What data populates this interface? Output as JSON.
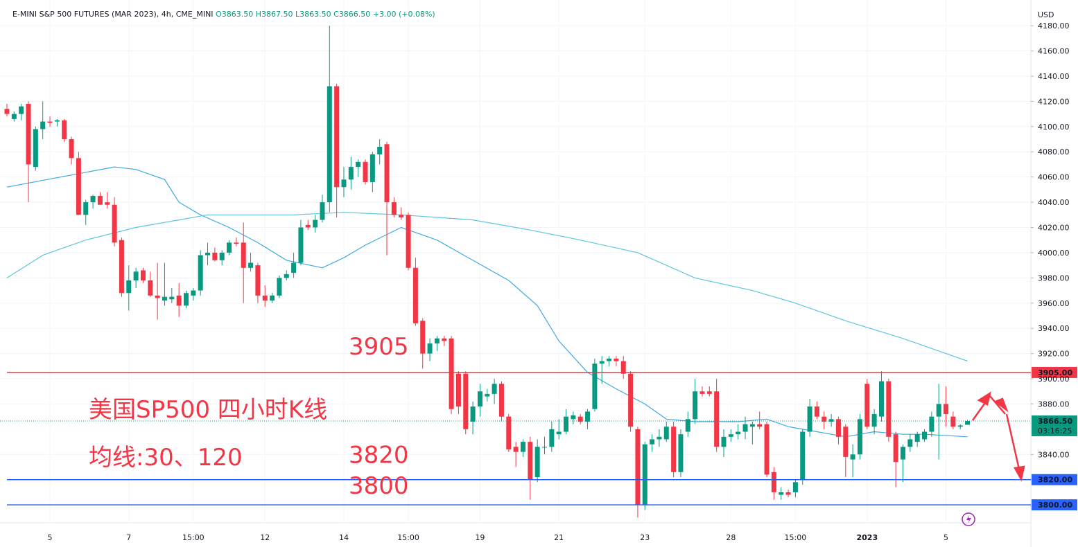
{
  "header": {
    "symbol": "E-MINI S&P 500 FUTURES (MAR 2023), 4h, CME_MINI",
    "open": "O3863.50",
    "high": "H3867.50",
    "low": "L3863.50",
    "close": "C3866.50",
    "change": "+3.00 (+0.08%)",
    "currency": "USD"
  },
  "chart_data": {
    "type": "candlestick",
    "annotations": {
      "title": "美国SP500 四小时K线",
      "subtitle": "均线:30、120"
    },
    "up_color": "#089981",
    "down_color": "#f23645",
    "grid": true,
    "ylim": [
      3788,
      4196
    ],
    "yticks": [
      {
        "value": 3840,
        "label": "3840.00"
      },
      {
        "value": 3880,
        "label": "3880.00"
      },
      {
        "value": 3900,
        "label": "3900.00"
      },
      {
        "value": 3920,
        "label": "3920.00"
      },
      {
        "value": 3940,
        "label": "3940.00"
      },
      {
        "value": 3960,
        "label": "3960.00"
      },
      {
        "value": 3980,
        "label": "3980.00"
      },
      {
        "value": 4000,
        "label": "4000.00"
      },
      {
        "value": 4020,
        "label": "4020.00"
      },
      {
        "value": 4040,
        "label": "4040.00"
      },
      {
        "value": 4060,
        "label": "4060.00"
      },
      {
        "value": 4080,
        "label": "4080.00"
      },
      {
        "value": 4100,
        "label": "4100.00"
      },
      {
        "value": 4120,
        "label": "4120.00"
      },
      {
        "value": 4140,
        "label": "4140.00"
      },
      {
        "value": 4160,
        "label": "4160.00"
      },
      {
        "value": 4180,
        "label": "4180.00"
      }
    ],
    "categories": [
      null,
      null,
      null,
      null,
      null,
      null,
      "5",
      null,
      null,
      null,
      null,
      null,
      null,
      null,
      null,
      null,
      null,
      "7",
      null,
      null,
      null,
      null,
      null,
      null,
      null,
      null,
      "15:00",
      null,
      null,
      null,
      null,
      null,
      null,
      null,
      null,
      null,
      "12",
      null,
      null,
      null,
      null,
      null,
      null,
      null,
      null,
      null,
      null,
      "14",
      null,
      null,
      null,
      null,
      null,
      null,
      null,
      null,
      "15:00",
      null,
      null,
      null,
      null,
      null,
      null,
      null,
      null,
      null,
      "19",
      null,
      null,
      null,
      null,
      null,
      null,
      null,
      null,
      null,
      null,
      "21",
      null,
      null,
      null,
      null,
      null,
      null,
      null,
      null,
      null,
      null,
      null,
      "23",
      null,
      null,
      null,
      null,
      null,
      null,
      null,
      null,
      null,
      null,
      null,
      "28",
      null,
      null,
      null,
      null,
      null,
      null,
      null,
      null,
      "15:00",
      null,
      null,
      null,
      null,
      null,
      null,
      null,
      null,
      null,
      "2023",
      null,
      null,
      null,
      null,
      null,
      null,
      null,
      null,
      null,
      null,
      "5",
      null,
      null,
      null
    ],
    "open": [
      4114,
      4106,
      4110,
      4118,
      4068,
      4098,
      4104,
      4104,
      4105,
      4090,
      4075,
      4030,
      4040,
      4045,
      4040,
      4038,
      4010,
      3968,
      3978,
      3986,
      3978,
      3966,
      3962,
      3963,
      3966,
      3958,
      3966,
      3970,
      3998,
      4000,
      3994,
      4000,
      4008,
      4008,
      3988,
      3990,
      3966,
      3962,
      3966,
      3980,
      3984,
      3992,
      4022,
      4020,
      4026,
      4040,
      4132,
      4052,
      4058,
      4068,
      4072,
      4056,
      4078,
      4086,
      4040,
      4030,
      4030,
      3988,
      3946,
      3920,
      3928,
      3932,
      3932,
      3904,
      3904,
      3866,
      3878,
      3886,
      3888,
      3896,
      3870,
      3846,
      3842,
      3850,
      3822,
      3846,
      3846,
      3856,
      3858,
      3868,
      3870,
      3866,
      3876,
      3912,
      3914,
      3916,
      3914,
      3904,
      3860,
      3800,
      3848,
      3852,
      3852,
      3862,
      3826,
      3858,
      3868,
      3890,
      3890,
      3890,
      3846,
      3854,
      3856,
      3858,
      3862,
      3864,
      3864,
      3826,
      3808,
      3810,
      3810,
      3820,
      3858,
      3878,
      3870,
      3866,
      3868,
      3862,
      3836,
      3840,
      3896,
      3862,
      3870,
      3898,
      3856,
      3836,
      3846,
      3850,
      3852,
      3858,
      3870,
      3880,
      3870,
      3862,
      3863.5
    ],
    "high": [
      4118,
      4112,
      4118,
      4120,
      4100,
      4120,
      4108,
      4106,
      4106,
      4092,
      4080,
      4042,
      4046,
      4048,
      4048,
      4044,
      4012,
      3990,
      3988,
      3988,
      3985,
      3992,
      3992,
      3972,
      3976,
      3970,
      3972,
      4002,
      4008,
      4004,
      4002,
      4010,
      4012,
      4024,
      4000,
      3992,
      3974,
      3968,
      3982,
      3986,
      4000,
      4026,
      4026,
      4030,
      4046,
      4180,
      4134,
      4068,
      4076,
      4074,
      4074,
      4080,
      4090,
      4088,
      4044,
      4036,
      4032,
      3996,
      3948,
      3932,
      3934,
      3934,
      3934,
      3906,
      3906,
      3882,
      3896,
      3892,
      3900,
      3898,
      3872,
      3850,
      3852,
      3854,
      3852,
      3854,
      3866,
      3868,
      3876,
      3874,
      3872,
      3876,
      3916,
      3918,
      3918,
      3918,
      3918,
      3906,
      3862,
      3850,
      3856,
      3860,
      3866,
      3866,
      3860,
      3874,
      3900,
      3894,
      3894,
      3900,
      3860,
      3860,
      3864,
      3870,
      3866,
      3874,
      3866,
      3830,
      3814,
      3812,
      3820,
      3860,
      3884,
      3882,
      3874,
      3872,
      3870,
      3864,
      3848,
      3872,
      3900,
      3876,
      3906,
      3900,
      3858,
      3848,
      3856,
      3858,
      3860,
      3874,
      3896,
      3894,
      3874,
      3864,
      3867.5
    ],
    "low": [
      4108,
      4104,
      4105,
      4040,
      4065,
      4090,
      4100,
      4100,
      4088,
      4070,
      4030,
      4022,
      4035,
      4038,
      4035,
      4005,
      3965,
      3954,
      3972,
      3976,
      3965,
      3947,
      3958,
      3960,
      3949,
      3956,
      3962,
      3966,
      3990,
      3993,
      3990,
      3998,
      4005,
      3960,
      3985,
      3960,
      3957,
      3960,
      3964,
      3978,
      3980,
      3990,
      4018,
      4016,
      4024,
      4032,
      4028,
      4044,
      4050,
      4060,
      4054,
      4048,
      4070,
      3998,
      4028,
      4026,
      3986,
      3942,
      3908,
      3914,
      3922,
      3926,
      3872,
      3872,
      3856,
      3856,
      3870,
      3882,
      3880,
      3866,
      3842,
      3830,
      3838,
      3804,
      3818,
      3840,
      3842,
      3852,
      3856,
      3864,
      3864,
      3860,
      3874,
      3896,
      3910,
      3910,
      3900,
      3858,
      3790,
      3796,
      3842,
      3846,
      3850,
      3822,
      3822,
      3854,
      3864,
      3886,
      3886,
      3842,
      3838,
      3850,
      3852,
      3852,
      3848,
      3860,
      3822,
      3804,
      3804,
      3806,
      3806,
      3816,
      3854,
      3868,
      3860,
      3862,
      3848,
      3822,
      3822,
      3836,
      3860,
      3856,
      3866,
      3850,
      3814,
      3818,
      3842,
      3846,
      3850,
      3854,
      3836,
      3862,
      3860,
      3860,
      3863.5
    ],
    "close": [
      4110,
      4110,
      4116,
      4070,
      4098,
      4104,
      4103,
      4105,
      4090,
      4075,
      4030,
      4040,
      4045,
      4038,
      4038,
      4008,
      3968,
      3978,
      3985,
      3978,
      3966,
      3964,
      3965,
      3965,
      3958,
      3968,
      3970,
      3998,
      4000,
      3994,
      4000,
      4008,
      4007,
      3988,
      3992,
      3966,
      3962,
      3966,
      3980,
      3983,
      3992,
      4020,
      4020,
      4026,
      4040,
      4132,
      4052,
      4058,
      4068,
      4072,
      4056,
      4078,
      4084,
      4040,
      4030,
      4028,
      3988,
      3944,
      3920,
      3928,
      3932,
      3930,
      3876,
      3878,
      3860,
      3878,
      3890,
      3888,
      3896,
      3870,
      3844,
      3842,
      3850,
      3820,
      3846,
      3846,
      3860,
      3858,
      3870,
      3871,
      3866,
      3874,
      3912,
      3914,
      3916,
      3914,
      3904,
      3862,
      3800,
      3848,
      3852,
      3854,
      3862,
      3826,
      3856,
      3868,
      3890,
      3888,
      3888,
      3846,
      3854,
      3856,
      3858,
      3864,
      3864,
      3862,
      3824,
      3810,
      3810,
      3808,
      3818,
      3858,
      3878,
      3870,
      3866,
      3868,
      3854,
      3838,
      3840,
      3868,
      3862,
      3872,
      3898,
      3854,
      3834,
      3846,
      3852,
      3856,
      3858,
      3870,
      3880,
      3872,
      3862,
      3863,
      3866.5
    ],
    "series": [
      {
        "color": "#3fa9e0",
        "x": [
          0,
          15,
          18,
          22,
          24,
          27,
          31,
          35,
          39,
          44,
          47,
          50,
          55,
          60,
          65,
          70,
          74,
          77,
          81,
          85,
          89,
          92,
          96,
          102,
          106,
          109,
          113,
          117,
          121,
          125,
          128,
          134
        ],
        "values": [
          4052,
          4068,
          4066,
          4058,
          4040,
          4030,
          4020,
          4008,
          3994,
          3988,
          3996,
          4006,
          4020,
          4010,
          3994,
          3978,
          3958,
          3930,
          3905,
          3892,
          3880,
          3868,
          3866,
          3866,
          3868,
          3862,
          3858,
          3854,
          3858,
          3856,
          3856,
          3854
        ]
      },
      {
        "color": "#5cc6dc",
        "x": [
          0,
          5,
          11,
          18,
          24,
          28,
          40,
          47,
          55,
          65,
          73,
          80,
          88,
          96,
          104,
          110,
          117,
          125,
          134
        ],
        "values": [
          3980,
          3998,
          4010,
          4020,
          4026,
          4030,
          4030,
          4032,
          4030,
          4026,
          4018,
          4010,
          4000,
          3980,
          3970,
          3960,
          3946,
          3932,
          3914
        ]
      }
    ],
    "levels": [
      {
        "value": 3905,
        "label": "3905.00",
        "annotation": "3905",
        "color": "#f23645"
      },
      {
        "value": 3820,
        "label": "3820.00",
        "annotation": "3820",
        "color": "#2962ff"
      },
      {
        "value": 3800,
        "label": "3800.00",
        "annotation": "3800",
        "color": "#2962ff"
      }
    ],
    "last": {
      "value": 3866.5,
      "label": "3866.50",
      "countdown": "03:16:25"
    }
  }
}
